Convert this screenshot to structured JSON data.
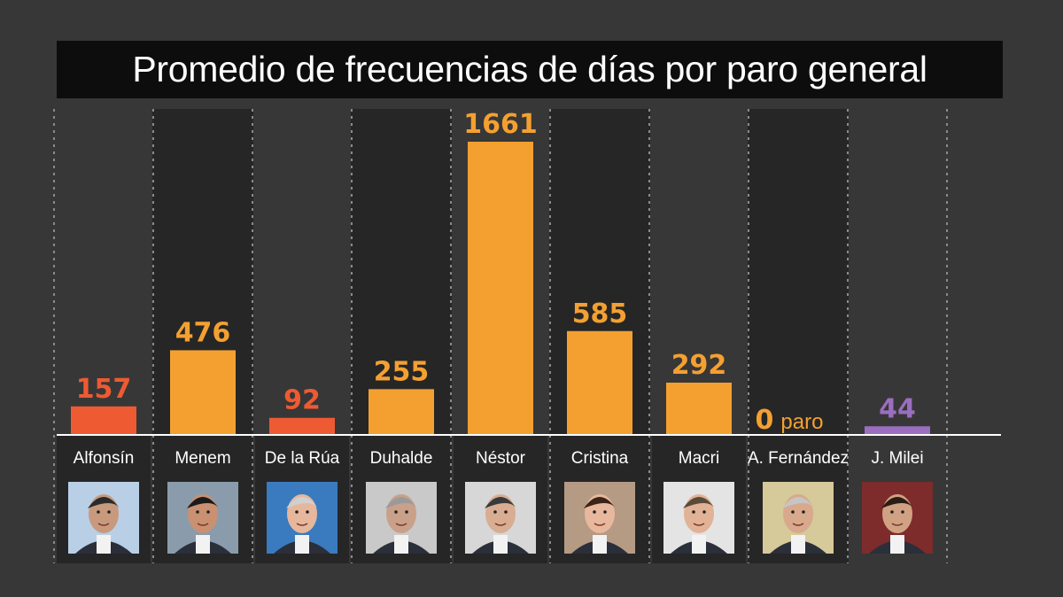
{
  "title": "Promedio de frecuencias de días por paro general",
  "chart_data": {
    "type": "bar",
    "title": "Promedio de frecuencias de días por paro general",
    "categories": [
      "Alfonsín",
      "Menem",
      "De la Rúa",
      "Duhalde",
      "Néstor",
      "Cristina",
      "Macri",
      "A. Fernández",
      "J. Milei"
    ],
    "values": [
      157,
      476,
      92,
      255,
      1661,
      585,
      292,
      0,
      44
    ],
    "value_labels": [
      "157",
      "476",
      "92",
      "255",
      "1661",
      "585",
      "292",
      "0",
      "44"
    ],
    "zero_suffix": "paro",
    "colors": [
      "#ee5a32",
      "#f4a031",
      "#ee5a32",
      "#f4a031",
      "#f4a031",
      "#f4a031",
      "#f4a031",
      "#f4a031",
      "#9b6ec0"
    ],
    "ylim": [
      0,
      1661
    ],
    "grid": false,
    "legend": "none"
  },
  "portraits": [
    "portrait-alfonsin-icon",
    "portrait-menem-icon",
    "portrait-delarua-icon",
    "portrait-duhalde-icon",
    "portrait-nestor-icon",
    "portrait-cristina-icon",
    "portrait-macri-icon",
    "portrait-afernandez-icon",
    "portrait-milei-icon"
  ]
}
